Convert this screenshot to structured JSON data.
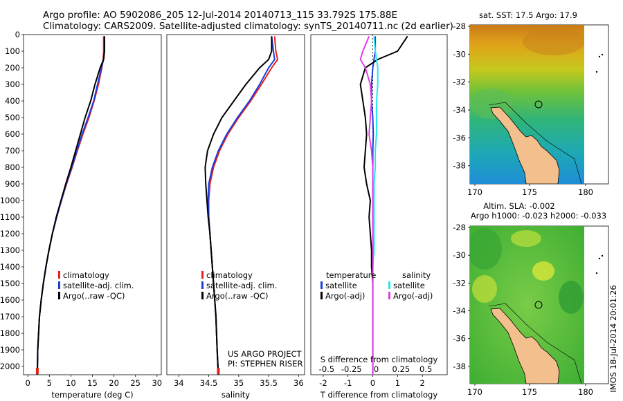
{
  "header": {
    "line1": "Argo profile: AO 5902086_205 12-Jul-2014 20140713_115 33.792S 175.88E",
    "line2": "Climatology: CARS2009. Satellite-adjusted climatology: synTS_20140711.nc (2d earlier)"
  },
  "depth_ticks": [
    0,
    100,
    200,
    300,
    400,
    500,
    600,
    700,
    800,
    900,
    1000,
    1100,
    1200,
    1300,
    1400,
    1500,
    1600,
    1700,
    1800,
    1900,
    2000
  ],
  "colors": {
    "climatology": "#e8201a",
    "satellite": "#1a3ce0",
    "argo": "#000000",
    "salinity_satellite": "#22e8f0",
    "salinity_argo": "#e23ee6"
  },
  "chart_data": [
    {
      "type": "line",
      "xlabel": "temperature (deg C)",
      "ylabel": "",
      "xlim": [
        -1,
        31
      ],
      "ylim": [
        2050,
        0
      ],
      "xticks": [
        0,
        5,
        10,
        15,
        20,
        25,
        30
      ],
      "legend": [
        "climatology",
        "satellite-adj. clim.",
        "Argo(..raw -QC)"
      ],
      "series": [
        {
          "name": "climatology",
          "x": [
            17.6,
            17.6,
            17.5,
            17.2,
            16.4,
            15.4,
            14.2,
            12.8,
            11.5,
            10.3,
            9.0,
            7.8,
            6.7,
            5.7,
            4.9,
            4.2,
            3.6,
            3.1,
            2.7,
            2.3,
            2.2
          ],
          "y": [
            10,
            100,
            150,
            200,
            300,
            400,
            500,
            600,
            700,
            800,
            900,
            1000,
            1100,
            1200,
            1300,
            1400,
            1500,
            1600,
            1700,
            1900,
            2050
          ]
        },
        {
          "name": "satellite-adj. clim.",
          "x": [
            17.8,
            17.8,
            17.6,
            17.1,
            16.2,
            15.3,
            14.0,
            12.6,
            11.4,
            10.2,
            8.9,
            7.8,
            6.7,
            5.7,
            4.9,
            4.2,
            3.6,
            3.1,
            2.7,
            2.3,
            2.2
          ],
          "y": [
            10,
            100,
            150,
            200,
            300,
            400,
            500,
            600,
            700,
            800,
            900,
            1000,
            1100,
            1200,
            1300,
            1400,
            1500,
            1600,
            1700,
            1900,
            2050
          ]
        },
        {
          "name": "Argo(..raw -QC)",
          "x": [
            17.8,
            17.8,
            17.6,
            16.8,
            15.6,
            14.6,
            13.3,
            12.2,
            11.1,
            10.0,
            8.8,
            7.7,
            6.6,
            5.7,
            4.9,
            4.2,
            3.6,
            3.1,
            2.7,
            2.3,
            2.2
          ],
          "y": [
            10,
            100,
            150,
            200,
            300,
            400,
            500,
            600,
            700,
            800,
            900,
            1000,
            1100,
            1200,
            1300,
            1400,
            1500,
            1600,
            1700,
            1900,
            2050
          ]
        }
      ]
    },
    {
      "type": "line",
      "xlabel": "salinity",
      "ylabel": "",
      "xlim": [
        33.8,
        36.1
      ],
      "ylim": [
        2050,
        0
      ],
      "xticks": [
        34,
        34.5,
        35,
        35.5,
        36
      ],
      "legend": [
        "climatology",
        "satellite-adj. clim.",
        "Argo(..raw -QC)"
      ],
      "annotations": [
        "US ARGO PROJECT",
        "PI: STEPHEN RISER"
      ],
      "series": [
        {
          "name": "climatology",
          "x": [
            35.6,
            35.62,
            35.65,
            35.55,
            35.38,
            35.2,
            35.0,
            34.82,
            34.68,
            34.58,
            34.52,
            34.5,
            34.5,
            34.52,
            34.54,
            34.56,
            34.58,
            34.6,
            34.62,
            34.64,
            34.66
          ],
          "y": [
            10,
            100,
            150,
            200,
            300,
            400,
            500,
            600,
            700,
            800,
            900,
            1000,
            1100,
            1200,
            1300,
            1400,
            1500,
            1600,
            1700,
            1900,
            2050
          ]
        },
        {
          "name": "satellite-adj. clim.",
          "x": [
            35.55,
            35.58,
            35.6,
            35.5,
            35.35,
            35.18,
            34.98,
            34.8,
            34.66,
            34.56,
            34.5,
            34.49,
            34.5,
            34.52,
            34.54,
            34.56,
            34.58,
            34.6,
            34.62,
            34.64,
            34.66
          ],
          "y": [
            10,
            100,
            150,
            200,
            300,
            400,
            500,
            600,
            700,
            800,
            900,
            1000,
            1100,
            1200,
            1300,
            1400,
            1500,
            1600,
            1700,
            1900,
            2050
          ]
        },
        {
          "name": "Argo(..raw -QC)",
          "x": [
            35.55,
            35.55,
            35.5,
            35.35,
            35.12,
            34.92,
            34.72,
            34.58,
            34.48,
            34.44,
            34.45,
            34.47,
            34.49,
            34.52,
            34.54,
            34.56,
            34.58,
            34.6,
            34.62,
            34.64,
            34.66
          ],
          "y": [
            10,
            100,
            150,
            200,
            300,
            400,
            500,
            600,
            700,
            800,
            900,
            1000,
            1100,
            1200,
            1300,
            1400,
            1500,
            1600,
            1700,
            1900,
            2050
          ]
        }
      ]
    },
    {
      "type": "line",
      "xlabel": "T difference from climatology",
      "ylabel": "",
      "title_bottom": "S difference from climatology",
      "xlim": [
        -2.5,
        3
      ],
      "ylim": [
        2050,
        0
      ],
      "xticks": [
        -2,
        -1,
        0,
        1,
        2
      ],
      "secondary_xticks": [
        "-0.5",
        "-0.25",
        "0",
        "0.25",
        "0.5"
      ],
      "legend": [
        "temperature",
        "satellite",
        "Argo(-adj)",
        "salinity",
        "satellite",
        "Argo(-adj)"
      ],
      "series": [
        {
          "name": "satellite",
          "x": [
            0.1,
            0.1,
            0.05,
            0.0,
            -0.05,
            -0.05,
            0.0,
            0.02,
            0.0,
            0.0,
            0.0,
            0.0,
            0.0,
            0.0,
            0.0,
            0.0,
            0.0,
            0.0,
            0.0,
            0.0,
            0.0
          ],
          "y": [
            10,
            100,
            150,
            200,
            300,
            400,
            500,
            600,
            700,
            800,
            900,
            1000,
            1100,
            1200,
            1300,
            1400,
            1500,
            1600,
            1700,
            1900,
            2050
          ]
        },
        {
          "name": "Argo(-adj)",
          "x": [
            1.4,
            1.0,
            0.2,
            -0.3,
            -0.5,
            -0.4,
            -0.3,
            -0.25,
            -0.3,
            -0.35,
            -0.25,
            -0.1,
            -0.15,
            -0.1,
            -0.05,
            -0.05,
            0.0,
            0.0,
            0.0,
            0.0,
            0.0
          ],
          "y": [
            10,
            100,
            150,
            200,
            300,
            400,
            500,
            600,
            700,
            800,
            900,
            1000,
            1100,
            1200,
            1300,
            1400,
            1500,
            1600,
            1700,
            1900,
            2050
          ]
        },
        {
          "name": "satellite",
          "x": [
            0.05,
            0.1,
            0.15,
            0.2,
            0.2,
            0.15,
            0.15,
            0.15,
            0.1,
            0.1,
            0.05,
            0.05,
            0.05,
            0.05,
            0.05,
            0.0,
            0.0,
            0.0,
            0.0,
            0.0,
            0.0
          ],
          "y": [
            10,
            100,
            150,
            200,
            300,
            400,
            500,
            600,
            700,
            800,
            900,
            1000,
            1100,
            1200,
            1300,
            1400,
            1500,
            1600,
            1700,
            1900,
            2050
          ]
        },
        {
          "name": "Argo(-adj)",
          "x": [
            -0.15,
            -0.4,
            -0.5,
            -0.3,
            -0.1,
            -0.05,
            -0.1,
            -0.15,
            -0.05,
            0.0,
            0.0,
            0.0,
            0.0,
            0.0,
            0.0,
            0.0,
            0.0,
            0.0,
            0.0,
            0.0,
            0.0
          ],
          "y": [
            10,
            100,
            150,
            200,
            300,
            400,
            500,
            600,
            700,
            800,
            900,
            1000,
            1100,
            1200,
            1300,
            1400,
            1500,
            1600,
            1700,
            1900,
            2050
          ]
        }
      ]
    },
    {
      "type": "heatmap",
      "title": "sat. SST: 17.5 Argo: 17.9",
      "xticks": [
        "170",
        "175",
        "180"
      ],
      "yticks": [
        "-28",
        "-30",
        "-32",
        "-34",
        "-36",
        "-38"
      ]
    },
    {
      "type": "heatmap",
      "title": "Altim. SLA: -0.002",
      "subtitle": "Argo h1000: -0.023 h2000: -0.033",
      "xticks": [
        "170",
        "175",
        "180"
      ],
      "yticks": [
        "-28",
        "-30",
        "-32",
        "-34",
        "-36",
        "-38"
      ]
    }
  ],
  "footer_stamp": "IMOS 18-Jul-2014 20:01:26"
}
